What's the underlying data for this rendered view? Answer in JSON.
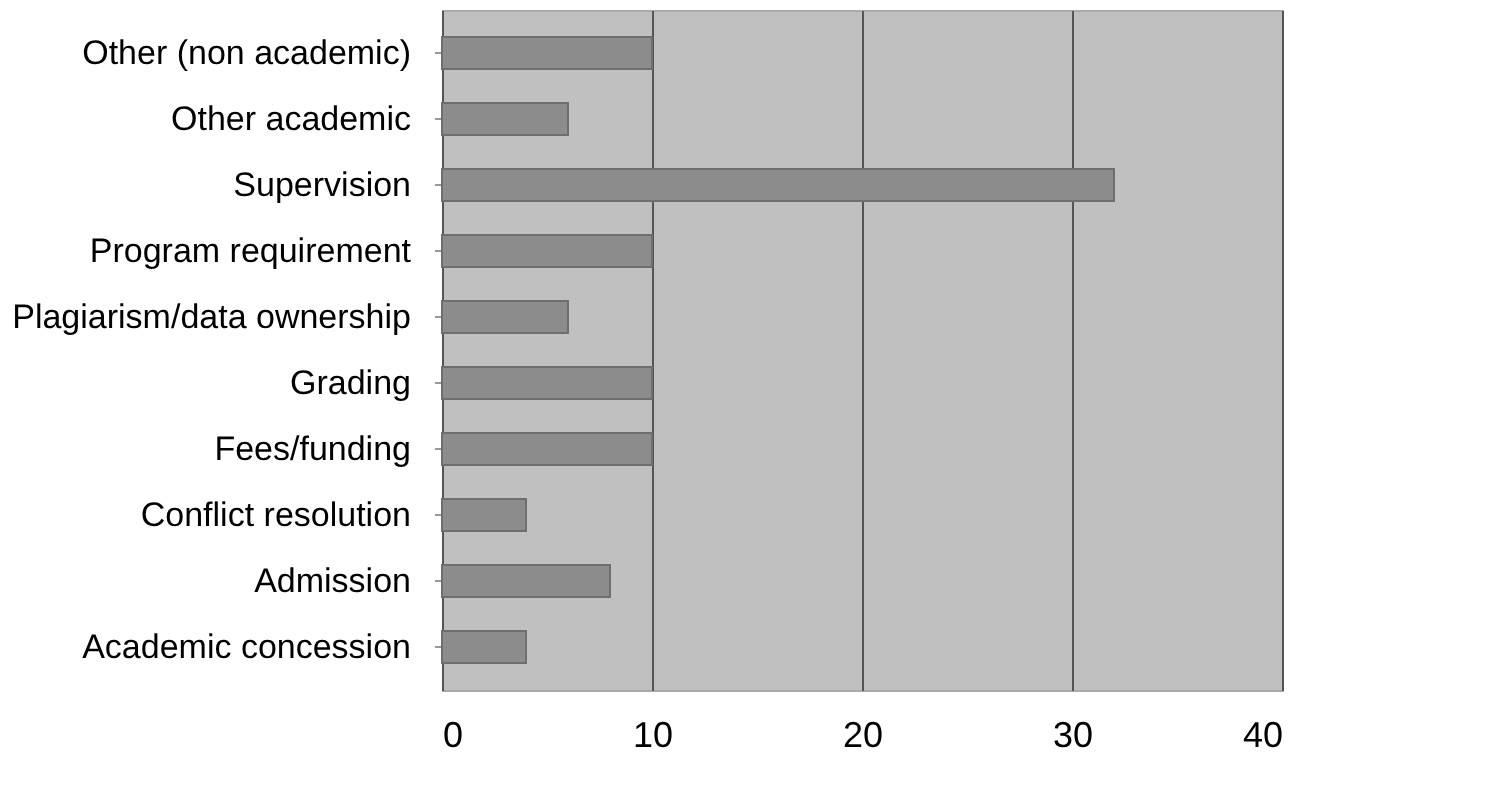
{
  "chart_data": {
    "type": "bar",
    "orientation": "horizontal",
    "categories": [
      "Other (non academic)",
      "Other academic",
      "Supervision",
      "Program requirement",
      "Plagiarism/data ownership",
      "Grading",
      "Fees/funding",
      "Conflict resolution",
      "Admission",
      "Academic concession"
    ],
    "values": [
      10,
      6,
      32,
      10,
      6,
      10,
      10,
      4,
      8,
      4
    ],
    "color": "#8c8c8c",
    "xlim": [
      0,
      40
    ],
    "xticks": [
      0,
      10,
      20,
      30,
      40
    ],
    "grid": "x"
  }
}
